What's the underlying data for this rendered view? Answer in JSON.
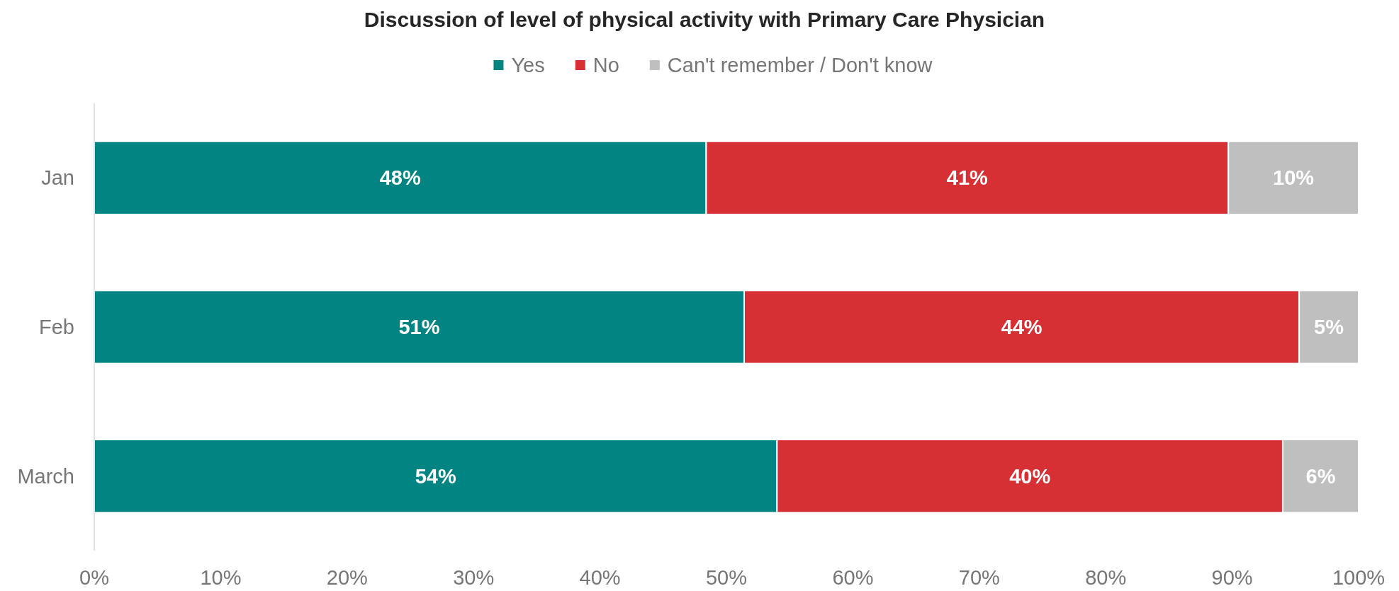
{
  "chart_data": {
    "type": "bar",
    "title": "Discussion of level of physical activity with Primary Care Physician",
    "categories": [
      "Jan",
      "Feb",
      "March"
    ],
    "orientation": "horizontal",
    "stacked": true,
    "legend": "top",
    "series": [
      {
        "name": "Yes",
        "color": "#028482",
        "values": [
          48.4,
          51.4,
          54.0
        ],
        "value_labels": [
          "48%",
          "51%",
          "54%"
        ]
      },
      {
        "name": "No",
        "color": "#d63035",
        "values": [
          41.3,
          43.9,
          40.0
        ],
        "value_labels": [
          "41%",
          "44%",
          "40%"
        ]
      },
      {
        "name": "Can't remember / Don't know",
        "color": "#bfbfbf",
        "values": [
          10.3,
          4.7,
          6.0
        ],
        "value_labels": [
          "10%",
          "5%",
          "6%"
        ]
      }
    ],
    "xlim": [
      0,
      100
    ],
    "xticks": [
      {
        "value": 0,
        "label": "0%"
      },
      {
        "value": 10,
        "label": "10%"
      },
      {
        "value": 20,
        "label": "20%"
      },
      {
        "value": 30,
        "label": "30%"
      },
      {
        "value": 40,
        "label": "40%"
      },
      {
        "value": 50,
        "label": "50%"
      },
      {
        "value": 60,
        "label": "60%"
      },
      {
        "value": 70,
        "label": "70%"
      },
      {
        "value": 80,
        "label": "80%"
      },
      {
        "value": 90,
        "label": "90%"
      },
      {
        "value": 100,
        "label": "100%"
      }
    ]
  }
}
